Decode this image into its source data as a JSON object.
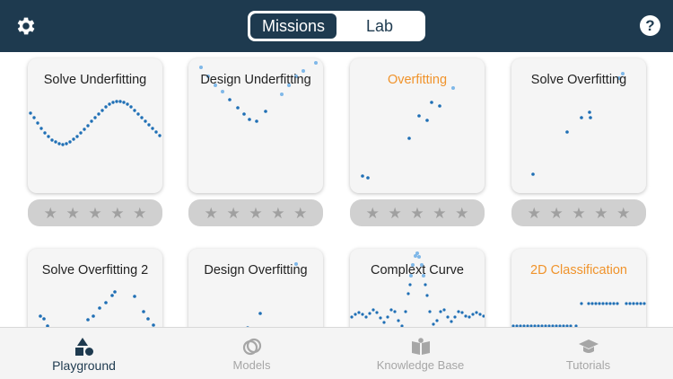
{
  "header": {
    "segments": [
      {
        "label": "Missions",
        "active": true
      },
      {
        "label": "Lab",
        "active": false
      }
    ],
    "settings_icon": "gear-icon",
    "help_icon": "question-circle-icon",
    "help_glyph": "?",
    "colors": {
      "bar": "#1e3a4f",
      "accent_orange": "#f0932b",
      "point_blue": "#1f6fb5",
      "point_light": "#7fb8e8"
    }
  },
  "missions": [
    {
      "title": "Solve Underfitting",
      "highlight": false,
      "stars": 0
    },
    {
      "title": "Design Underfitting",
      "highlight": false,
      "stars": 0
    },
    {
      "title": "Overfitting",
      "highlight": true,
      "stars": 0
    },
    {
      "title": "Solve Overfitting",
      "highlight": false,
      "stars": 0
    },
    {
      "title": "Solve Overfitting 2",
      "highlight": false
    },
    {
      "title": "Design Overfitting",
      "highlight": false
    },
    {
      "title": "Complext Curve",
      "highlight": false
    },
    {
      "title": "2D Classification",
      "highlight": true
    }
  ],
  "star_glyph": "★",
  "tabbar": {
    "tabs": [
      {
        "label": "Playground",
        "icon": "shapes-icon",
        "active": true
      },
      {
        "label": "Models",
        "icon": "rings-icon",
        "active": false
      },
      {
        "label": "Knowledge Base",
        "icon": "book-icon",
        "active": false
      },
      {
        "label": "Tutorials",
        "icon": "graduation-cap-icon",
        "active": false
      }
    ]
  }
}
